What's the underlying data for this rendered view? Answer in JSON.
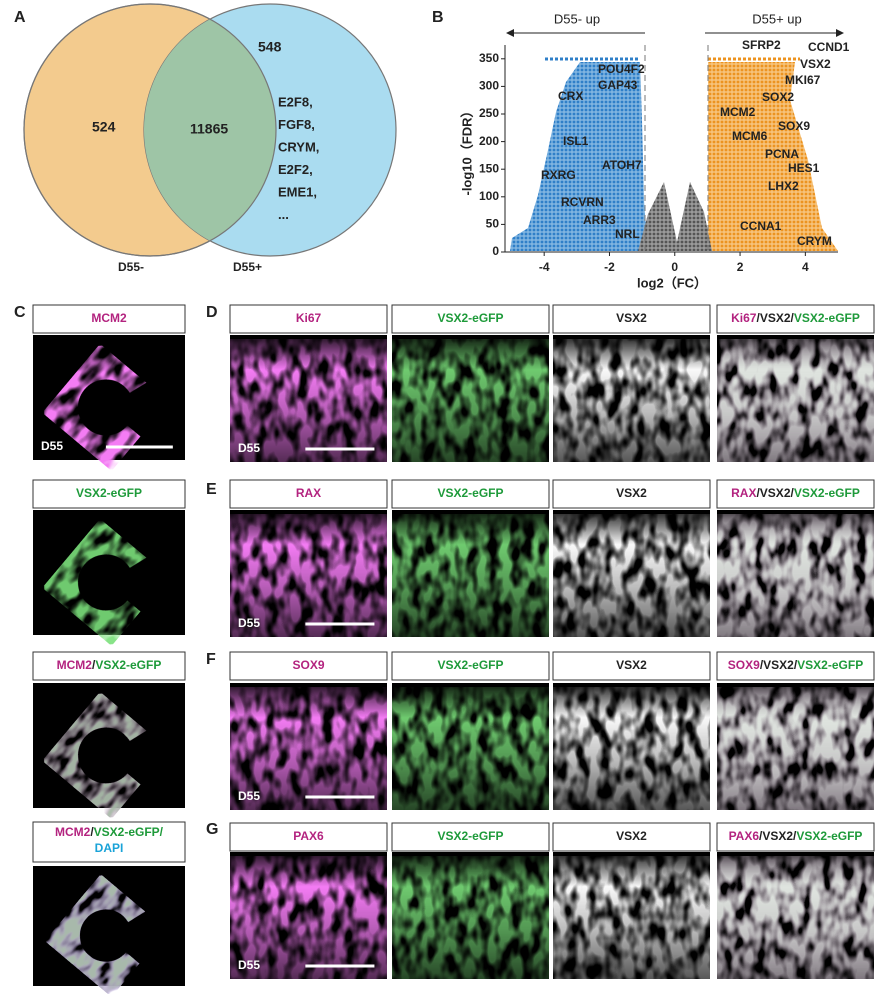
{
  "panel_letters": {
    "A": "A",
    "B": "B",
    "C": "C",
    "D": "D",
    "E": "E",
    "F": "F",
    "G": "G"
  },
  "venn": {
    "left_label": "D55-",
    "right_label": "D55+",
    "left_only": "524",
    "overlap": "11865",
    "right_only": "548",
    "right_genes": [
      "E2F8,",
      "FGF8,",
      "CRYM,",
      "E2F2,",
      "EME1,",
      "..."
    ]
  },
  "volcano": {
    "left_header": "D55- up",
    "right_header": "D55+ up",
    "x_label": "log2（FC）",
    "y_label": "-log10（FDR）",
    "xlim": [
      -5.2,
      5.0
    ],
    "ylim": [
      0,
      375
    ],
    "xticks": [
      -4,
      -2,
      0,
      2,
      4
    ],
    "yticks": [
      0,
      50,
      100,
      150,
      200,
      250,
      300,
      350
    ],
    "left_genes": [
      "POU4F2",
      "GAP43",
      "CRX",
      "ISL1",
      "RXRG",
      "ATOH7",
      "RCVRN",
      "ARR3",
      "NRL"
    ],
    "right_genes": [
      "SFRP2",
      "CCND1",
      "VSX2",
      "MKI67",
      "SOX2",
      "MCM2",
      "SOX9",
      "MCM6",
      "PCNA",
      "HES1",
      "LHX2",
      "CCNA1",
      "CRYM"
    ]
  },
  "panel_c": [
    {
      "channel": "magenta",
      "stage": "D55",
      "label": [
        [
          {
            "text": "MCM2",
            "color": "#b3237f"
          }
        ]
      ]
    },
    {
      "channel": "green",
      "label": [
        [
          {
            "text": "VSX2-eGFP",
            "color": "#1e9a3a"
          }
        ]
      ]
    },
    {
      "channel": "merge",
      "label": [
        [
          {
            "text": "MCM2",
            "color": "#b3237f"
          },
          {
            "text": "/",
            "color": "#222222"
          },
          {
            "text": "VSX2-eGFP",
            "color": "#1e9a3a"
          }
        ]
      ]
    },
    {
      "channel": "dapi",
      "label": [
        [
          {
            "text": "MCM2",
            "color": "#b3237f"
          },
          {
            "text": "/",
            "color": "#222222"
          },
          {
            "text": "VSX2-eGFP/",
            "color": "#1e9a3a"
          }
        ],
        [
          {
            "text": "DAPI",
            "color": "#1aa3d8"
          }
        ]
      ]
    }
  ],
  "rows": [
    {
      "letter": "D",
      "columns": [
        {
          "channel": "magenta",
          "stage": "D55",
          "label": [
            [
              {
                "text": "Ki67",
                "color": "#b3237f"
              }
            ]
          ]
        },
        {
          "channel": "green",
          "label": [
            [
              {
                "text": "VSX2-eGFP",
                "color": "#1e9a3a"
              }
            ]
          ]
        },
        {
          "channel": "gray",
          "label": [
            [
              {
                "text": "VSX2",
                "color": "#222222"
              }
            ]
          ]
        },
        {
          "channel": "merge",
          "label": [
            [
              {
                "text": "Ki67",
                "color": "#b3237f"
              },
              {
                "text": "/VSX2/",
                "color": "#222222"
              },
              {
                "text": "VSX2-eGFP",
                "color": "#1e9a3a"
              }
            ]
          ]
        }
      ]
    },
    {
      "letter": "E",
      "columns": [
        {
          "channel": "magenta",
          "stage": "D55",
          "label": [
            [
              {
                "text": "RAX",
                "color": "#b3237f"
              }
            ]
          ]
        },
        {
          "channel": "green",
          "label": [
            [
              {
                "text": "VSX2-eGFP",
                "color": "#1e9a3a"
              }
            ]
          ]
        },
        {
          "channel": "gray",
          "label": [
            [
              {
                "text": "VSX2",
                "color": "#222222"
              }
            ]
          ]
        },
        {
          "channel": "merge",
          "label": [
            [
              {
                "text": "RAX",
                "color": "#b3237f"
              },
              {
                "text": "/VSX2/",
                "color": "#222222"
              },
              {
                "text": "VSX2-eGFP",
                "color": "#1e9a3a"
              }
            ]
          ]
        }
      ]
    },
    {
      "letter": "F",
      "columns": [
        {
          "channel": "magenta",
          "stage": "D55",
          "label": [
            [
              {
                "text": "SOX9",
                "color": "#b3237f"
              }
            ]
          ]
        },
        {
          "channel": "green",
          "label": [
            [
              {
                "text": "VSX2-eGFP",
                "color": "#1e9a3a"
              }
            ]
          ]
        },
        {
          "channel": "gray",
          "label": [
            [
              {
                "text": "VSX2",
                "color": "#222222"
              }
            ]
          ]
        },
        {
          "channel": "merge",
          "label": [
            [
              {
                "text": "SOX9",
                "color": "#b3237f"
              },
              {
                "text": "/VSX2/",
                "color": "#222222"
              },
              {
                "text": "VSX2-eGFP",
                "color": "#1e9a3a"
              }
            ]
          ]
        }
      ]
    },
    {
      "letter": "G",
      "columns": [
        {
          "channel": "magenta",
          "stage": "D55",
          "label": [
            [
              {
                "text": "PAX6",
                "color": "#b3237f"
              }
            ]
          ]
        },
        {
          "channel": "green",
          "label": [
            [
              {
                "text": "VSX2-eGFP",
                "color": "#1e9a3a"
              }
            ]
          ]
        },
        {
          "channel": "gray",
          "label": [
            [
              {
                "text": "VSX2",
                "color": "#222222"
              }
            ]
          ]
        },
        {
          "channel": "merge",
          "label": [
            [
              {
                "text": "PAX6",
                "color": "#b3237f"
              },
              {
                "text": "/VSX2/",
                "color": "#222222"
              },
              {
                "text": "VSX2-eGFP",
                "color": "#1e9a3a"
              }
            ]
          ]
        }
      ]
    }
  ]
}
